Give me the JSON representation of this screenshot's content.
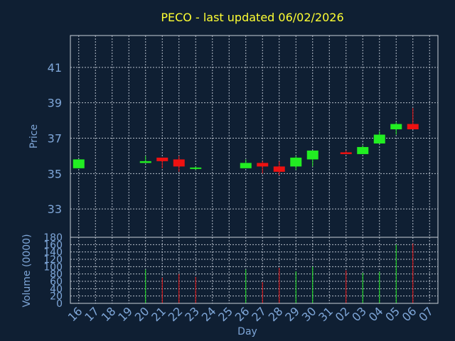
{
  "chart_data": [
    {
      "type": "candlestick",
      "title": "PECO - last updated 06/02/2026",
      "ylabel": "Price",
      "ylim": [
        31.4,
        42.8
      ],
      "yticks": [
        33,
        35,
        37,
        39,
        41
      ],
      "grid": true,
      "colors": {
        "up": "#22ee22",
        "down": "#ee1111",
        "grid": "#c8d0da",
        "text": "#7ea6d8",
        "title": "#ffff33",
        "background": "#0f1f33"
      },
      "x": [
        "16",
        "17",
        "18",
        "19",
        "20",
        "21",
        "22",
        "23",
        "24",
        "25",
        "26",
        "27",
        "28",
        "29",
        "30",
        "31",
        "02",
        "03",
        "04",
        "05",
        "06",
        "07"
      ],
      "series": [
        {
          "x": "16",
          "open": 35.3,
          "high": 35.8,
          "low": 35.3,
          "close": 35.8
        },
        {
          "x": "20",
          "open": 35.6,
          "high": 36.0,
          "low": 35.6,
          "close": 35.7
        },
        {
          "x": "21",
          "open": 35.9,
          "high": 35.9,
          "low": 35.3,
          "close": 35.7
        },
        {
          "x": "22",
          "open": 35.8,
          "high": 36.0,
          "low": 35.1,
          "close": 35.4
        },
        {
          "x": "23",
          "open": 35.3,
          "high": 35.4,
          "low": 35.2,
          "close": 35.3
        },
        {
          "x": "26",
          "open": 35.3,
          "high": 35.8,
          "low": 35.3,
          "close": 35.6
        },
        {
          "x": "27",
          "open": 35.6,
          "high": 35.7,
          "low": 35.0,
          "close": 35.4
        },
        {
          "x": "28",
          "open": 35.4,
          "high": 35.7,
          "low": 34.9,
          "close": 35.1
        },
        {
          "x": "29",
          "open": 35.4,
          "high": 36.0,
          "low": 35.2,
          "close": 35.9
        },
        {
          "x": "30",
          "open": 35.8,
          "high": 36.3,
          "low": 35.4,
          "close": 36.3
        },
        {
          "x": "02",
          "open": 36.2,
          "high": 36.3,
          "low": 36.1,
          "close": 36.1
        },
        {
          "x": "03",
          "open": 36.1,
          "high": 36.6,
          "low": 36.1,
          "close": 36.5
        },
        {
          "x": "04",
          "open": 36.7,
          "high": 37.4,
          "low": 36.7,
          "close": 37.2
        },
        {
          "x": "05",
          "open": 37.5,
          "high": 37.9,
          "low": 37.2,
          "close": 37.8
        },
        {
          "x": "06",
          "open": 37.8,
          "high": 38.7,
          "low": 37.5,
          "close": 37.5
        }
      ]
    },
    {
      "type": "bar",
      "xlabel": "Day",
      "ylabel": "Volume (0000)",
      "ylim": [
        0,
        180
      ],
      "yticks": [
        0,
        20,
        40,
        60,
        80,
        100,
        120,
        140,
        160,
        180
      ],
      "grid": true,
      "x": [
        "16",
        "17",
        "18",
        "19",
        "20",
        "21",
        "22",
        "23",
        "24",
        "25",
        "26",
        "27",
        "28",
        "29",
        "30",
        "31",
        "02",
        "03",
        "04",
        "05",
        "06",
        "07"
      ],
      "series": [
        {
          "x": "20",
          "value": 92,
          "direction": "up"
        },
        {
          "x": "21",
          "value": 70,
          "direction": "down"
        },
        {
          "x": "22",
          "value": 80,
          "direction": "down"
        },
        {
          "x": "23",
          "value": 72,
          "direction": "down"
        },
        {
          "x": "26",
          "value": 92,
          "direction": "up"
        },
        {
          "x": "27",
          "value": 58,
          "direction": "down"
        },
        {
          "x": "28",
          "value": 97,
          "direction": "down"
        },
        {
          "x": "29",
          "value": 87,
          "direction": "up"
        },
        {
          "x": "30",
          "value": 100,
          "direction": "up"
        },
        {
          "x": "02",
          "value": 90,
          "direction": "down"
        },
        {
          "x": "03",
          "value": 83,
          "direction": "up"
        },
        {
          "x": "04",
          "value": 86,
          "direction": "up"
        },
        {
          "x": "05",
          "value": 160,
          "direction": "up"
        },
        {
          "x": "06",
          "value": 163,
          "direction": "down"
        }
      ]
    }
  ]
}
